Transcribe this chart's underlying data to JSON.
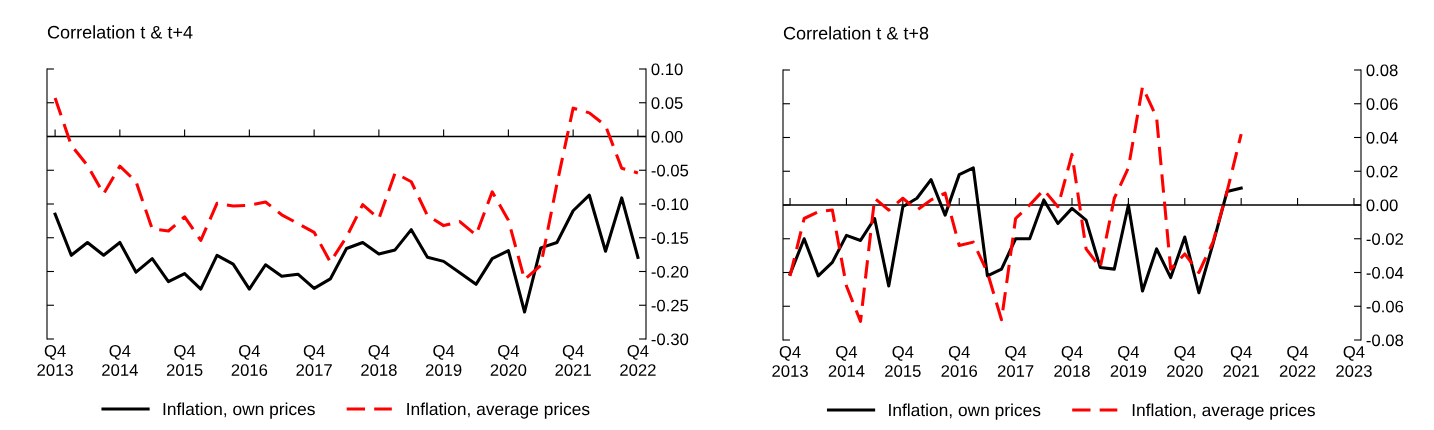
{
  "chart_data": [
    {
      "type": "line",
      "title": "Correlation t & t+4",
      "categories": [
        "Q4\n2013",
        null,
        null,
        null,
        "Q4\n2014",
        null,
        null,
        null,
        "Q4\n2015",
        null,
        null,
        null,
        "Q4\n2016",
        null,
        null,
        null,
        "Q4\n2017",
        null,
        null,
        null,
        "Q4\n2018",
        null,
        null,
        null,
        "Q4\n2019",
        null,
        null,
        null,
        "Q4\n2020",
        null,
        null,
        null,
        "Q4\n2021",
        null,
        null,
        null,
        "Q4\n2022"
      ],
      "series": [
        {
          "name": "Inflation, own prices",
          "color": "#000000",
          "line_style": "solid",
          "values": [
            -0.115,
            -0.176,
            -0.157,
            -0.176,
            -0.157,
            -0.201,
            -0.181,
            -0.215,
            -0.203,
            -0.226,
            -0.176,
            -0.189,
            -0.226,
            -0.19,
            -0.207,
            -0.204,
            -0.225,
            -0.211,
            -0.166,
            -0.157,
            -0.174,
            -0.168,
            -0.138,
            -0.179,
            -0.185,
            -0.202,
            -0.219,
            -0.181,
            -0.169,
            -0.26,
            -0.165,
            -0.157,
            -0.11,
            -0.087,
            -0.17,
            -0.091,
            -0.179
          ]
        },
        {
          "name": "Inflation, average prices",
          "color": "#ff0000",
          "line_style": "dashed",
          "values": [
            0.057,
            -0.013,
            -0.043,
            -0.085,
            -0.044,
            -0.067,
            -0.137,
            -0.14,
            -0.119,
            -0.154,
            -0.099,
            -0.103,
            -0.102,
            -0.097,
            -0.116,
            -0.129,
            -0.142,
            -0.186,
            -0.149,
            -0.101,
            -0.122,
            -0.054,
            -0.067,
            -0.117,
            -0.132,
            -0.126,
            -0.146,
            -0.082,
            -0.124,
            -0.212,
            -0.191,
            -0.07,
            0.042,
            0.035,
            0.016,
            -0.047,
            -0.054
          ]
        }
      ],
      "ylim": [
        -0.3,
        0.1
      ],
      "yticks": [
        {
          "value": 0.1,
          "label": "0.10"
        },
        {
          "value": 0.05,
          "label": "0.05"
        },
        {
          "value": 0,
          "label": "0.00"
        },
        {
          "value": -0.05,
          "label": "-0.05"
        },
        {
          "value": -0.1,
          "label": "-0.10"
        },
        {
          "value": -0.15,
          "label": "-0.15"
        },
        {
          "value": -0.2,
          "label": "-0.20"
        },
        {
          "value": -0.25,
          "label": "-0.25"
        },
        {
          "value": -0.3,
          "label": "-0.30"
        }
      ],
      "ref_lines": [
        {
          "axis": "y",
          "value": 0,
          "color": "#000000"
        }
      ],
      "legend": "bottom",
      "marker": "none"
    },
    {
      "type": "line",
      "title": "Correlation t & t+8",
      "categories": [
        "Q4\n2013",
        null,
        null,
        null,
        "Q4\n2014",
        null,
        null,
        null,
        "Q4\n2015",
        null,
        null,
        null,
        "Q4\n2016",
        null,
        null,
        null,
        "Q4\n2017",
        null,
        null,
        null,
        "Q4\n2018",
        null,
        null,
        null,
        "Q4\n2019",
        null,
        null,
        null,
        "Q4\n2020",
        null,
        null,
        null,
        "Q4\n2021",
        null,
        null,
        null,
        "Q4\n2022",
        null,
        null,
        null,
        "Q4\n2023"
      ],
      "series": [
        {
          "name": "Inflation, own prices",
          "color": "#000000",
          "line_style": "solid",
          "values": [
            -0.041,
            -0.02,
            -0.042,
            -0.034,
            -0.018,
            -0.021,
            -0.008,
            -0.048,
            -0.001,
            0.004,
            0.015,
            -0.006,
            0.018,
            0.022,
            -0.042,
            -0.038,
            -0.02,
            -0.02,
            0.003,
            -0.011,
            -0.002,
            -0.009,
            -0.037,
            -0.038,
            0.0,
            -0.051,
            -0.026,
            -0.043,
            -0.019,
            -0.052,
            -0.023,
            0.008,
            0.01,
            null,
            null,
            null,
            null,
            null,
            null,
            null,
            null
          ]
        },
        {
          "name": "Inflation, average prices",
          "color": "#ff0000",
          "line_style": "dashed",
          "values": [
            -0.042,
            -0.008,
            -0.004,
            -0.003,
            -0.048,
            -0.069,
            0.004,
            -0.003,
            0.004,
            -0.003,
            0.003,
            0.007,
            -0.024,
            -0.022,
            -0.04,
            -0.068,
            -0.008,
            0.0,
            0.009,
            -0.001,
            0.03,
            -0.026,
            -0.037,
            0.004,
            0.022,
            0.07,
            0.052,
            -0.038,
            -0.029,
            -0.04,
            -0.022,
            0.008,
            0.042,
            null,
            null,
            null,
            null,
            null,
            null,
            null,
            null
          ]
        }
      ],
      "ylim": [
        -0.08,
        0.08
      ],
      "yticks": [
        {
          "value": 0.08,
          "label": "0.08"
        },
        {
          "value": 0.06,
          "label": "0.06"
        },
        {
          "value": 0.04,
          "label": "0.04"
        },
        {
          "value": 0.02,
          "label": "0.02"
        },
        {
          "value": 0,
          "label": "0.00"
        },
        {
          "value": -0.02,
          "label": "-0.02"
        },
        {
          "value": -0.04,
          "label": "-0.04"
        },
        {
          "value": -0.06,
          "label": "-0.06"
        },
        {
          "value": -0.08,
          "label": "-0.08"
        }
      ],
      "ref_lines": [
        {
          "axis": "y",
          "value": 0,
          "color": "#000000"
        }
      ],
      "legend": "bottom",
      "marker": "none"
    }
  ]
}
